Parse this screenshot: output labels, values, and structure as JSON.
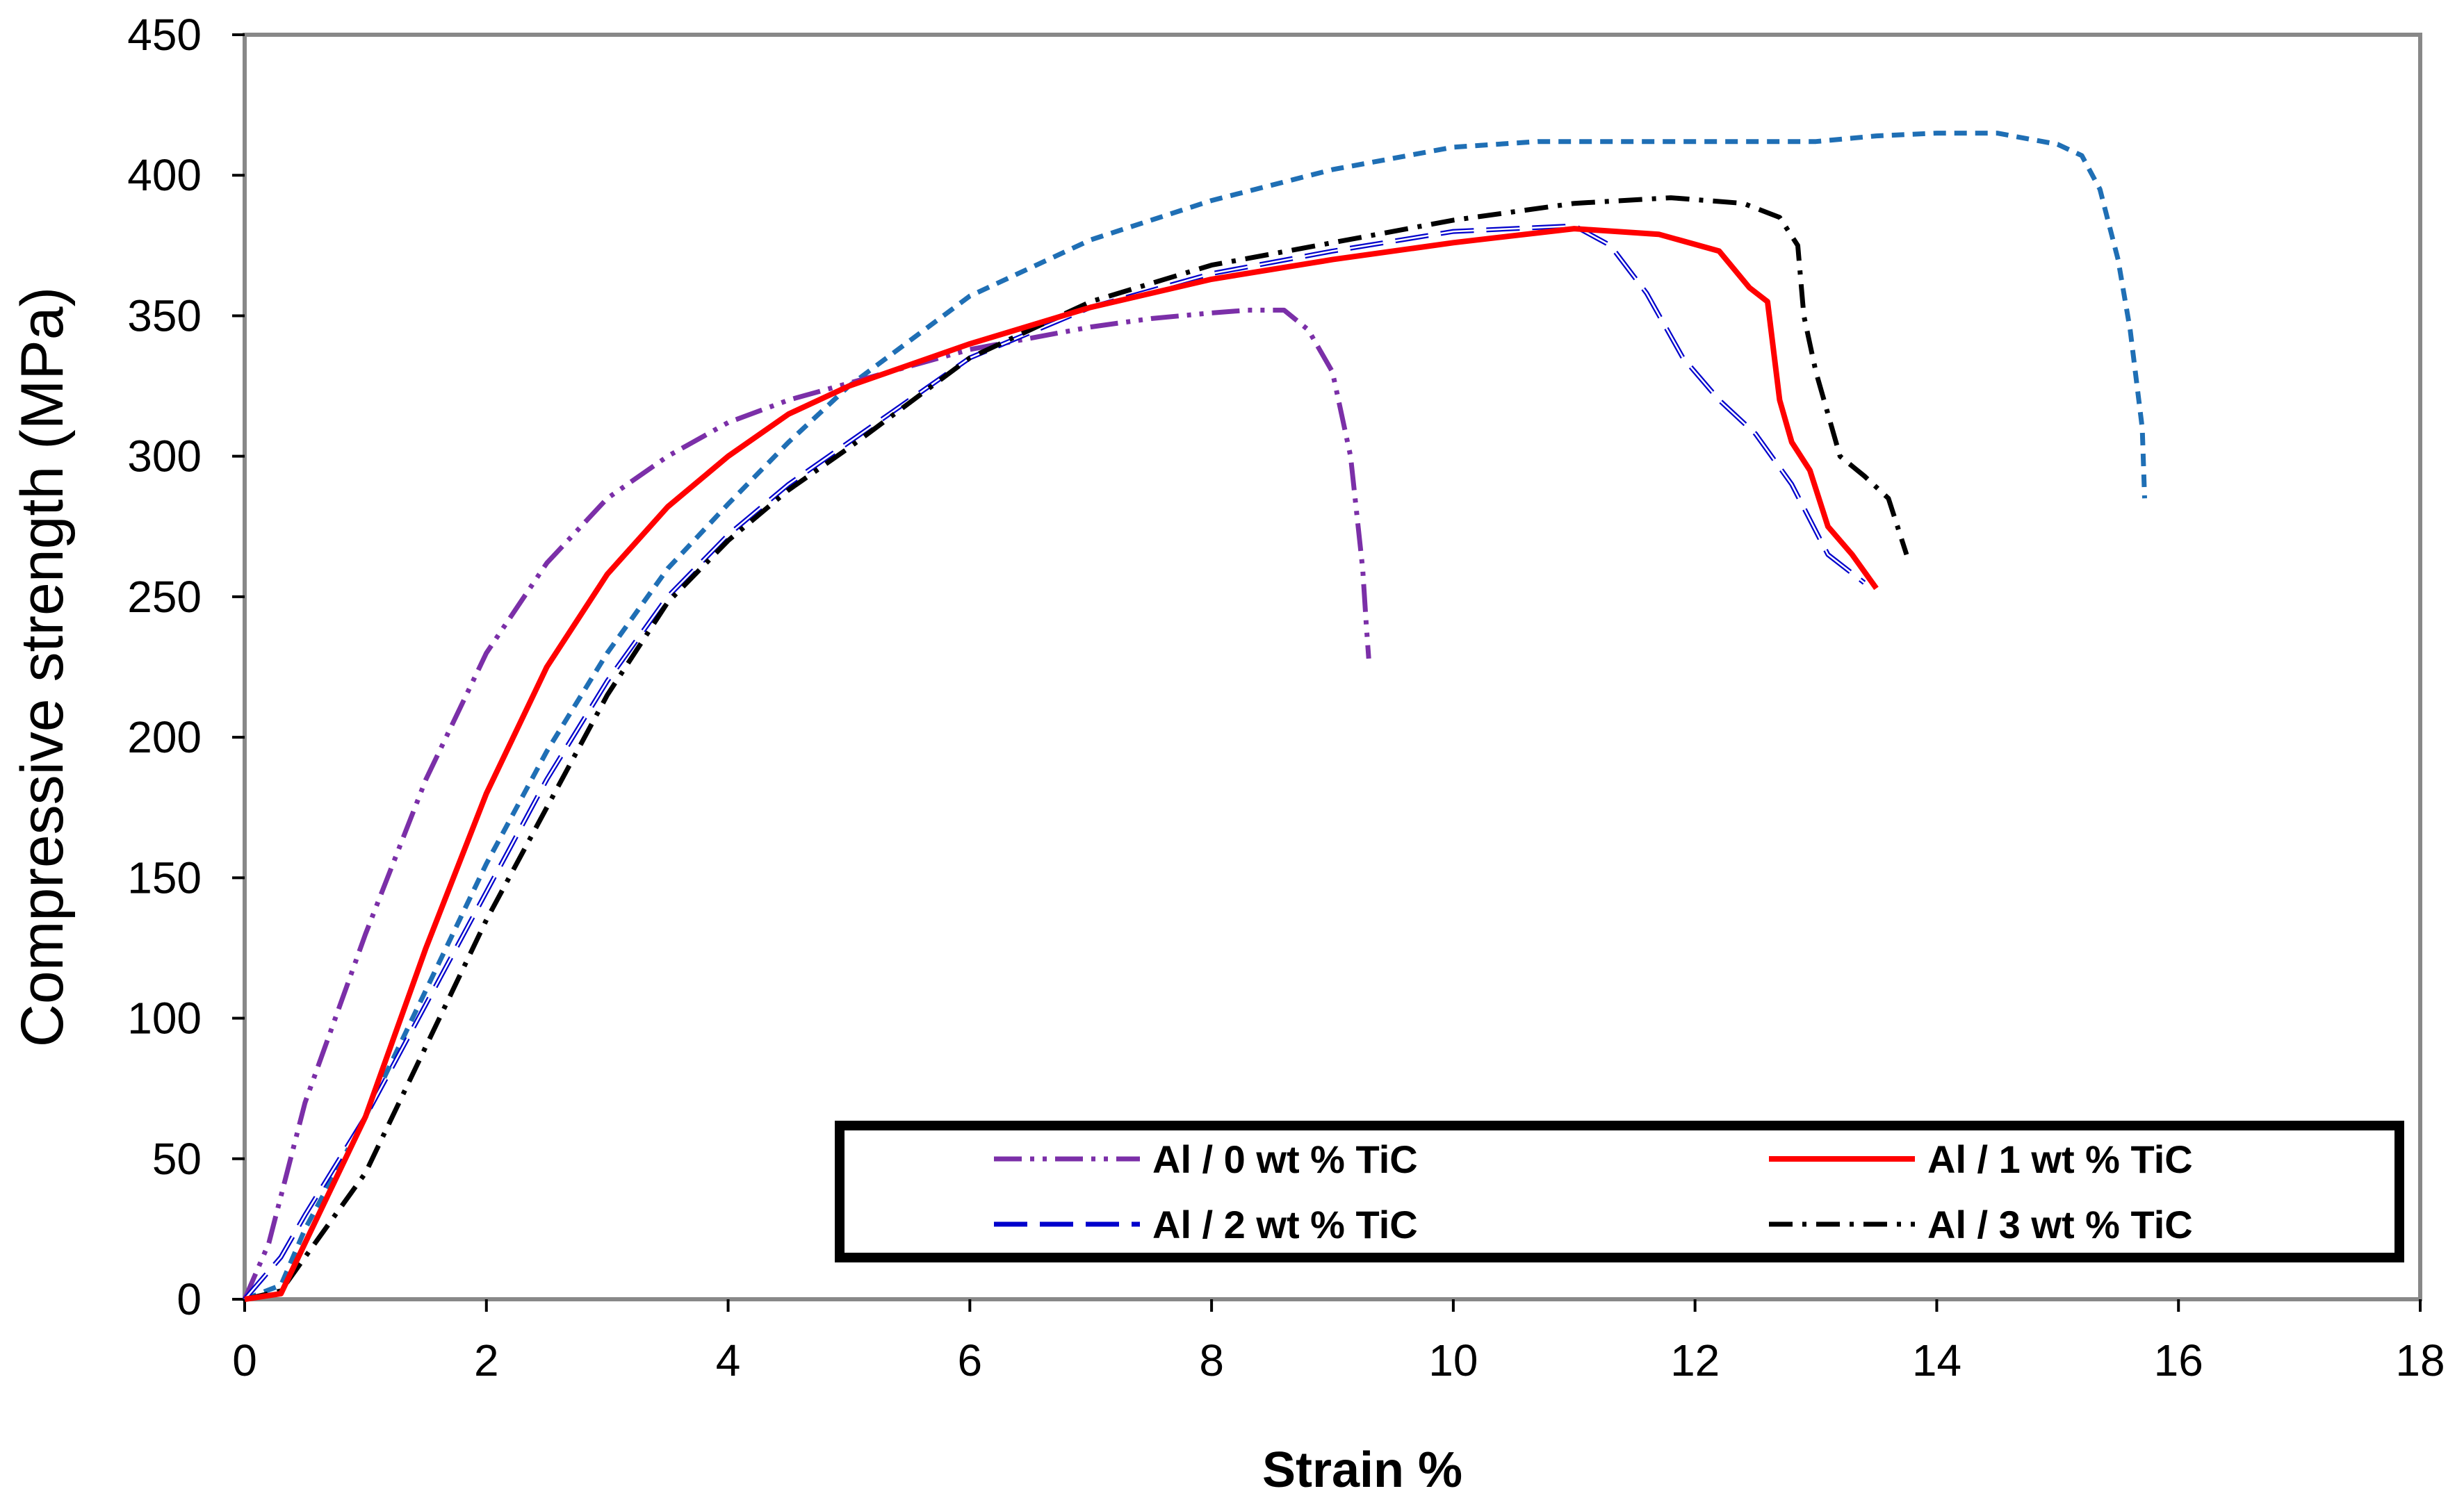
{
  "chart_data": {
    "type": "line",
    "title": "",
    "xlabel": "Strain %",
    "ylabel": "Compressive strength (MPa)",
    "xlim": [
      0,
      18
    ],
    "ylim": [
      0,
      450
    ],
    "xticks": [
      0,
      2,
      4,
      6,
      8,
      10,
      12,
      14,
      16,
      18
    ],
    "yticks": [
      0,
      50,
      100,
      150,
      200,
      250,
      300,
      350,
      400,
      450
    ],
    "grid": false,
    "legend_position": "bottom-right",
    "series": [
      {
        "name": "Al / 0 wt % TiC",
        "color": "#7B2FA8",
        "style": "dash-dot-dot",
        "x": [
          0,
          0.2,
          0.5,
          1.0,
          1.5,
          2.0,
          2.5,
          3.0,
          3.5,
          4.0,
          4.5,
          5.0,
          5.5,
          6.0,
          6.5,
          7.0,
          7.5,
          8.0,
          8.3,
          8.6,
          8.8,
          9.0,
          9.15,
          9.25,
          9.28,
          9.3
        ],
        "y": [
          0,
          20,
          70,
          130,
          185,
          230,
          262,
          285,
          300,
          312,
          320,
          326,
          332,
          338,
          342,
          346,
          349,
          351,
          352,
          352,
          345,
          330,
          300,
          260,
          240,
          228
        ]
      },
      {
        "name": "Al / 1 wt % TiC",
        "color": "#FF0000",
        "style": "solid",
        "x": [
          0,
          0.3,
          0.5,
          1.0,
          1.5,
          2.0,
          2.5,
          3.0,
          3.5,
          4.0,
          4.5,
          5.0,
          6.0,
          7.0,
          8.0,
          9.0,
          10.0,
          11.0,
          11.7,
          12.2,
          12.45,
          12.6,
          12.7,
          12.8,
          12.95,
          13.1,
          13.3,
          13.5
        ],
        "y": [
          0,
          2,
          20,
          65,
          125,
          180,
          225,
          258,
          282,
          300,
          315,
          325,
          340,
          353,
          363,
          370,
          376,
          381,
          379,
          373,
          360,
          355,
          320,
          305,
          295,
          275,
          265,
          253
        ]
      },
      {
        "name": "Al / 2 wt % TiC",
        "color": "#0000CC",
        "style": "long-dash",
        "x": [
          0,
          0.3,
          0.5,
          1.0,
          1.5,
          2.0,
          2.5,
          3.0,
          3.5,
          4.0,
          4.5,
          5.0,
          6.0,
          7.0,
          8.0,
          9.0,
          10.0,
          11.0,
          11.3,
          11.6,
          11.9,
          12.2,
          12.5,
          12.8,
          13.1,
          13.4
        ],
        "y": [
          0,
          15,
          30,
          65,
          105,
          145,
          185,
          220,
          250,
          272,
          290,
          305,
          335,
          353,
          365,
          373,
          380,
          382,
          375,
          358,
          335,
          320,
          308,
          290,
          265,
          255
        ]
      },
      {
        "name": "Al / 3 wt % TiC",
        "color": "#000000",
        "style": "dash-dot",
        "x": [
          0,
          0.3,
          0.5,
          1.0,
          1.5,
          2.0,
          2.5,
          3.0,
          3.5,
          4.0,
          4.5,
          5.0,
          6.0,
          7.0,
          8.0,
          9.0,
          10.0,
          11.0,
          11.8,
          12.4,
          12.7,
          12.85,
          12.9,
          13.0,
          13.2,
          13.4,
          13.6,
          13.75
        ],
        "y": [
          0,
          3,
          15,
          45,
          90,
          135,
          175,
          215,
          248,
          270,
          288,
          303,
          335,
          355,
          368,
          376,
          384,
          390,
          392,
          390,
          385,
          375,
          350,
          330,
          300,
          293,
          285,
          265
        ]
      },
      {
        "name": "",
        "color": "#1F6FB5",
        "style": "short-dash",
        "x": [
          0,
          0.3,
          0.5,
          1.0,
          1.5,
          2.0,
          2.5,
          3.0,
          3.5,
          4.0,
          4.5,
          5.0,
          6.0,
          7.0,
          8.0,
          9.0,
          10.0,
          10.7,
          11.5,
          12.5,
          13.0,
          13.5,
          14.0,
          14.5,
          15.0,
          15.2,
          15.35,
          15.5,
          15.6,
          15.7,
          15.72
        ],
        "y": [
          0,
          5,
          25,
          65,
          110,
          155,
          195,
          230,
          260,
          283,
          305,
          325,
          357,
          377,
          391,
          402,
          410,
          412,
          412,
          412,
          412,
          414,
          415,
          415,
          411,
          407,
          395,
          370,
          345,
          310,
          285
        ]
      }
    ]
  }
}
